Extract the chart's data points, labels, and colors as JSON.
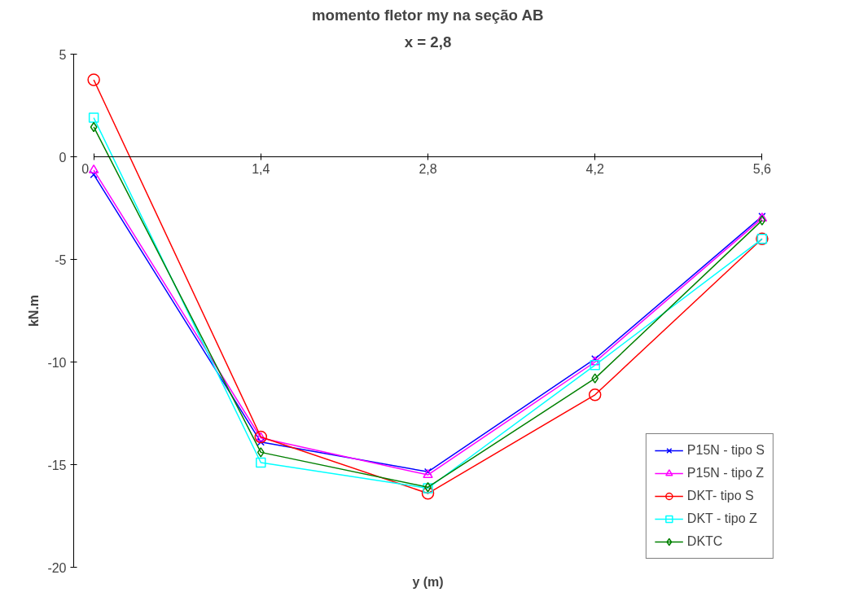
{
  "chart_data": {
    "type": "line",
    "title": "momento fletor my na seção AB",
    "subtitle": "x = 2,8",
    "xlabel": "y (m)",
    "ylabel": "kN.m",
    "x": [
      0,
      1.4,
      2.8,
      4.2,
      5.6
    ],
    "xlim": [
      0,
      5.6
    ],
    "xticks": [
      {
        "value": 0,
        "label": "0"
      },
      {
        "value": 1.4,
        "label": "1,4"
      },
      {
        "value": 2.8,
        "label": "2,8"
      },
      {
        "value": 4.2,
        "label": "4,2"
      },
      {
        "value": 5.6,
        "label": "5,6"
      }
    ],
    "ylim": [
      -20,
      5
    ],
    "yticks": [
      -20,
      -15,
      -10,
      -5,
      0,
      5
    ],
    "grid": false,
    "legend": "bottom right",
    "series": [
      {
        "name": "P15N - tipo S",
        "color": "#0000ff",
        "marker": "cross",
        "values": [
          -0.87,
          -13.9,
          -15.35,
          -9.85,
          -2.9
        ]
      },
      {
        "name": "P15N - tipo Z",
        "color": "#ff00ff",
        "marker": "triangle",
        "values": [
          -0.65,
          -13.7,
          -15.5,
          -10.0,
          -3.0
        ]
      },
      {
        "name": "DKT- tipo S",
        "color": "#ff0000",
        "marker": "circle",
        "values": [
          3.75,
          -13.65,
          -16.4,
          -11.6,
          -4.0
        ]
      },
      {
        "name": "DKT - tipo Z",
        "color": "#00ffff",
        "marker": "square",
        "values": [
          1.9,
          -14.9,
          -16.15,
          -10.15,
          -4.0
        ]
      },
      {
        "name": "DKTC",
        "color": "#008000",
        "marker": "diamond",
        "values": [
          1.45,
          -14.4,
          -16.1,
          -10.8,
          -3.1
        ]
      }
    ]
  }
}
